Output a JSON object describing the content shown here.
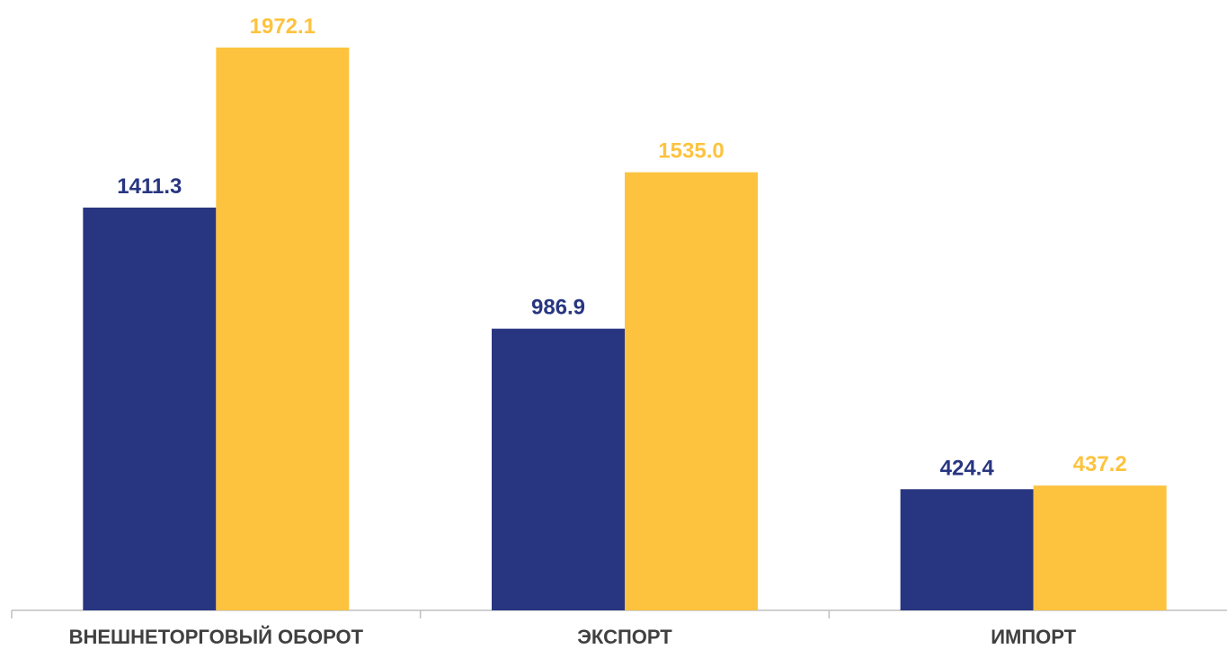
{
  "chart_data": {
    "type": "bar",
    "categories": [
      "ВНЕШНЕТОРГОВЫЙ ОБОРОТ",
      "ЭКСПОРТ",
      "ИМПОРТ"
    ],
    "series": [
      {
        "values": [
          1411.3,
          986.9,
          424.4
        ],
        "labels": [
          "1411.3",
          "986.9",
          "424.4"
        ],
        "color": "#283681"
      },
      {
        "values": [
          1972.1,
          1535.0,
          437.2
        ],
        "labels": [
          "1972.1",
          "1535.0",
          "437.2"
        ],
        "color": "#FDC33F"
      }
    ],
    "title": "",
    "xlabel": "",
    "ylabel": "",
    "ylim": [
      0,
      2000
    ],
    "grid": false,
    "legend": "none",
    "axis_color": "#BFBFBF"
  }
}
